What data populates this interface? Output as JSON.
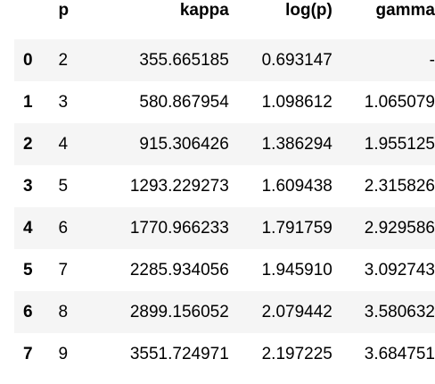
{
  "table": {
    "columns": [
      "p",
      "kappa",
      "log(p)",
      "gamma"
    ],
    "rows": [
      {
        "index": "0",
        "p": "2",
        "kappa": "355.665185",
        "logp": "0.693147",
        "gamma": "-"
      },
      {
        "index": "1",
        "p": "3",
        "kappa": "580.867954",
        "logp": "1.098612",
        "gamma": "1.065079"
      },
      {
        "index": "2",
        "p": "4",
        "kappa": "915.306426",
        "logp": "1.386294",
        "gamma": "1.955125"
      },
      {
        "index": "3",
        "p": "5",
        "kappa": "1293.229273",
        "logp": "1.609438",
        "gamma": "2.315826"
      },
      {
        "index": "4",
        "p": "6",
        "kappa": "1770.966233",
        "logp": "1.791759",
        "gamma": "2.929586"
      },
      {
        "index": "5",
        "p": "7",
        "kappa": "2285.934056",
        "logp": "1.945910",
        "gamma": "3.092743"
      },
      {
        "index": "6",
        "p": "8",
        "kappa": "2899.156052",
        "logp": "2.079442",
        "gamma": "3.580632"
      },
      {
        "index": "7",
        "p": "9",
        "kappa": "3551.724971",
        "logp": "2.197225",
        "gamma": "3.684751"
      }
    ]
  }
}
